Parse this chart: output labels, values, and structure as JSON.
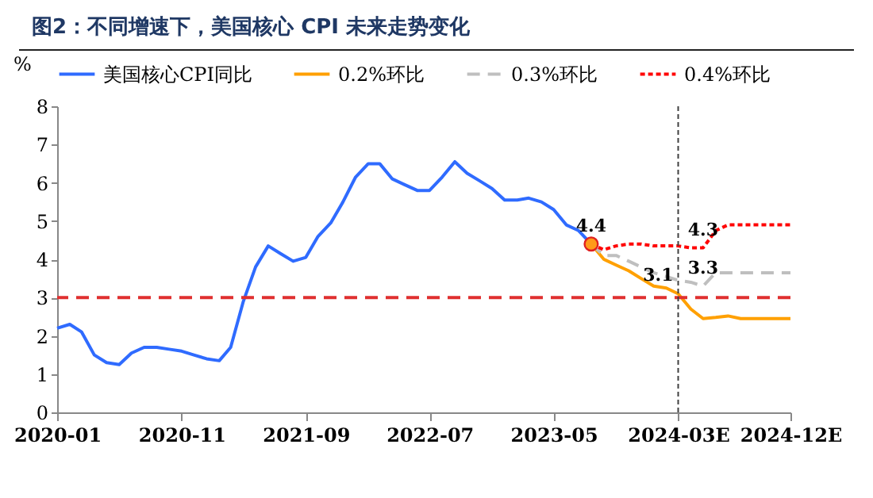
{
  "chart_data": {
    "type": "line",
    "title": "图2：不同增速下，美国核心 CPI 未来走势变化",
    "ylabel": "%",
    "xlim": [
      "2020-01",
      "2024-12"
    ],
    "xticks": [
      {
        "value": "2020-01",
        "label": "2020-01"
      },
      {
        "value": "2020-11",
        "label": "2020-11"
      },
      {
        "value": "2021-09",
        "label": "2021-09"
      },
      {
        "value": "2022-07",
        "label": "2022-07"
      },
      {
        "value": "2023-05",
        "label": "2023-05"
      },
      {
        "value": "2024-03",
        "label": "2024-03E"
      },
      {
        "value": "2024-12",
        "label": "2024-12E"
      }
    ],
    "ylim": [
      0,
      8
    ],
    "yticks": [
      0,
      1,
      2,
      3,
      4,
      5,
      6,
      7,
      8
    ],
    "grid": false,
    "legend": "top",
    "series": [
      {
        "name": "美国核心CPI同比",
        "color": "#2f6bff",
        "line_style": "solid",
        "x": [
          "2020-01",
          "2020-02",
          "2020-03",
          "2020-04",
          "2020-05",
          "2020-06",
          "2020-07",
          "2020-08",
          "2020-09",
          "2020-10",
          "2020-11",
          "2020-12",
          "2021-01",
          "2021-02",
          "2021-03",
          "2021-04",
          "2021-05",
          "2021-06",
          "2021-07",
          "2021-08",
          "2021-09",
          "2021-10",
          "2021-11",
          "2021-12",
          "2022-01",
          "2022-02",
          "2022-03",
          "2022-04",
          "2022-05",
          "2022-06",
          "2022-07",
          "2022-08",
          "2022-09",
          "2022-10",
          "2022-11",
          "2022-12",
          "2023-01",
          "2023-02",
          "2023-03",
          "2023-04",
          "2023-05",
          "2023-06",
          "2023-07",
          "2023-08"
        ],
        "values": [
          2.2,
          2.3,
          2.1,
          1.5,
          1.3,
          1.25,
          1.55,
          1.7,
          1.7,
          1.65,
          1.6,
          1.5,
          1.4,
          1.35,
          1.7,
          2.9,
          3.8,
          4.35,
          4.15,
          3.95,
          4.05,
          4.6,
          4.95,
          5.5,
          6.15,
          6.5,
          6.5,
          6.1,
          5.95,
          5.8,
          5.8,
          6.15,
          6.55,
          6.25,
          6.05,
          5.85,
          5.55,
          5.55,
          5.6,
          5.5,
          5.3,
          4.9,
          4.75,
          4.4
        ]
      },
      {
        "name": "0.2%环比",
        "color": "#ffa000",
        "line_style": "solid",
        "x": [
          "2023-08",
          "2023-09",
          "2023-10",
          "2023-11",
          "2023-12",
          "2024-01",
          "2024-02",
          "2024-03",
          "2024-04",
          "2024-05",
          "2024-06",
          "2024-07",
          "2024-08",
          "2024-09",
          "2024-10",
          "2024-11",
          "2024-12"
        ],
        "values": [
          4.4,
          4.0,
          3.85,
          3.7,
          3.5,
          3.3,
          3.25,
          3.1,
          2.7,
          2.45,
          2.48,
          2.52,
          2.45,
          2.45,
          2.45,
          2.45,
          2.45
        ]
      },
      {
        "name": "0.3%环比",
        "color": "#bfbfbf",
        "line_style": "dashed",
        "x": [
          "2023-08",
          "2023-09",
          "2023-10",
          "2023-11",
          "2023-12",
          "2024-01",
          "2024-02",
          "2024-03",
          "2024-04",
          "2024-05",
          "2024-06",
          "2024-07",
          "2024-08",
          "2024-09",
          "2024-10",
          "2024-11",
          "2024-12"
        ],
        "values": [
          4.4,
          4.1,
          4.1,
          3.95,
          3.8,
          3.65,
          3.55,
          3.45,
          3.4,
          3.3,
          3.65,
          3.65,
          3.65,
          3.65,
          3.65,
          3.65,
          3.65
        ]
      },
      {
        "name": "0.4%环比",
        "color": "#ff0000",
        "line_style": "dotted",
        "x": [
          "2023-08",
          "2023-09",
          "2023-10",
          "2023-11",
          "2023-12",
          "2024-01",
          "2024-02",
          "2024-03",
          "2024-04",
          "2024-05",
          "2024-06",
          "2024-07",
          "2024-08",
          "2024-09",
          "2024-10",
          "2024-11",
          "2024-12"
        ],
        "values": [
          4.4,
          4.25,
          4.35,
          4.4,
          4.4,
          4.35,
          4.35,
          4.35,
          4.3,
          4.3,
          4.75,
          4.9,
          4.9,
          4.9,
          4.9,
          4.9,
          4.9
        ]
      },
      {
        "type": "scatter",
        "marker": "circle",
        "color": "#ff9a1a",
        "x": [
          "2023-08"
        ],
        "values": [
          4.4
        ]
      }
    ],
    "ref_lines": [
      {
        "axis": "y",
        "value": 3,
        "color": "#e03030",
        "line_style": "dashed"
      },
      {
        "axis": "x",
        "value": "2024-03",
        "color": "#404040",
        "line_style": "dotted"
      }
    ],
    "annotations": [
      {
        "text": "4.4",
        "x": "2023-08",
        "y": 4.4
      },
      {
        "text": "4.3",
        "x": "2024-05",
        "y": 4.3
      },
      {
        "text": "3.3",
        "x": "2024-05",
        "y": 3.3
      },
      {
        "text": "3.1",
        "x": "2024-03",
        "y": 3.1
      }
    ]
  }
}
